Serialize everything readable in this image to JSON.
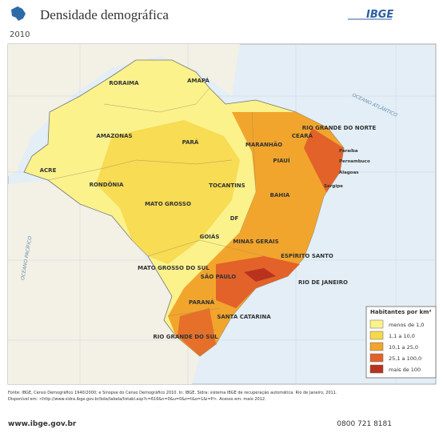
{
  "header": {
    "title": "Densidade demográfica",
    "year": "2010",
    "logo": "IBGE"
  },
  "map": {
    "states": [
      "RORAIMA",
      "AMAPÁ",
      "AMAZONAS",
      "PARÁ",
      "MARANHÃO",
      "CEARÁ",
      "RIO GRANDE DO NORTE",
      "PIAUÍ",
      "Paraíba",
      "Pernambuco",
      "Alagoas",
      "Sergipe",
      "ACRE",
      "RONDÔNIA",
      "TOCANTINS",
      "BAHIA",
      "MATO GROSSO",
      "GOIÁS",
      "DF",
      "MINAS GERAIS",
      "ESPÍRITO SANTO",
      "MATO GROSSO DO SUL",
      "SÃO PAULO",
      "RIO DE JANEIRO",
      "PARANÁ",
      "SANTA CATARINA",
      "RIO GRANDE DO SUL"
    ],
    "oceans": [
      "OCEANO ATLÂNTICO",
      "OCEANO PACÍFICO"
    ]
  },
  "legend": {
    "title": "Habitantes por km²",
    "items": [
      {
        "label": "menos de 1,0",
        "color": "#fbf28c"
      },
      {
        "label": "1,1 a 10,0",
        "color": "#f6d84a"
      },
      {
        "label": "10,1 a 25,0",
        "color": "#f2a52c"
      },
      {
        "label": "25,1 a 100,0",
        "color": "#e2622a"
      },
      {
        "label": "mais de 100",
        "color": "#b8321e"
      }
    ]
  },
  "footer": {
    "source_1": "Fonte: IBGE, Censo Demográfico 1940/2000; e Sinopse do Censo Demográfico 2010. In: IBGE. Sidra: sistema IBGE de recuperação automática. Rio de Janeiro, 2011.",
    "source_2": "Disponível em: <http://www.sidra.ibge.gov.br/bda/tabela/listabl.asp?c=616&n=0&u=0&z=t&o=1&i=P>. Acesso em: maio 2012.",
    "website": "www.ibge.gov.br",
    "phone": "0800 721 8181"
  }
}
